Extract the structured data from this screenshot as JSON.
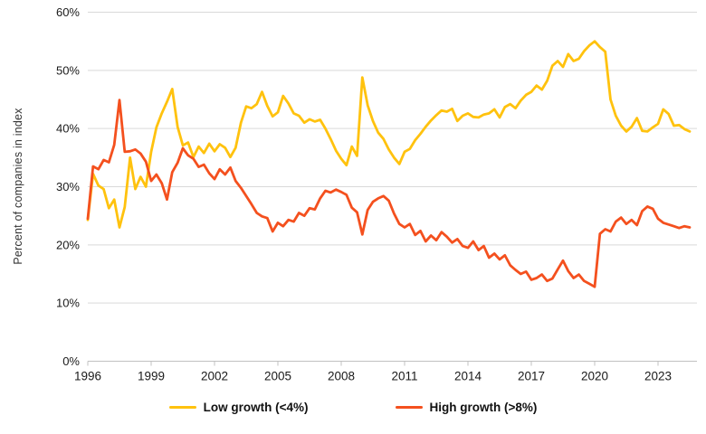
{
  "chart_data": {
    "type": "line",
    "title": "",
    "xlabel": "",
    "ylabel": "Percent of companies in index",
    "ylim": [
      0,
      60
    ],
    "ytick_step": 10,
    "ytick_suffix": "%",
    "xticks": [
      1996,
      1999,
      2002,
      2005,
      2008,
      2011,
      2014,
      2017,
      2020,
      2023
    ],
    "x_start": 1996.0,
    "x_step": 0.25,
    "x_end": 2024.5,
    "grid": "horizontal",
    "legend_position": "bottom",
    "series": [
      {
        "name": "Low growth (<4%)",
        "color": "#FFC20E",
        "values": [
          24.3,
          32.2,
          30.2,
          29.6,
          26.3,
          27.8,
          23.0,
          26.5,
          35.0,
          29.6,
          31.7,
          30.0,
          36.0,
          40.2,
          42.6,
          44.6,
          46.8,
          40.3,
          37.1,
          37.6,
          35.1,
          36.9,
          35.8,
          37.4,
          36.1,
          37.3,
          36.7,
          35.1,
          36.7,
          41.0,
          43.8,
          43.5,
          44.2,
          46.3,
          43.9,
          42.1,
          42.8,
          45.6,
          44.3,
          42.6,
          42.2,
          41.0,
          41.6,
          41.2,
          41.5,
          40.0,
          38.2,
          36.2,
          34.8,
          33.7,
          36.9,
          35.3,
          48.8,
          44.0,
          41.3,
          39.3,
          38.2,
          36.4,
          35.0,
          33.9,
          36.0,
          36.5,
          38.0,
          39.1,
          40.3,
          41.4,
          42.3,
          43.1,
          42.9,
          43.4,
          41.3,
          42.2,
          42.6,
          42.0,
          41.9,
          42.4,
          42.6,
          43.3,
          41.9,
          43.7,
          44.2,
          43.5,
          44.8,
          45.8,
          46.3,
          47.4,
          46.7,
          48.2,
          50.8,
          51.6,
          50.6,
          52.8,
          51.6,
          52.0,
          53.3,
          54.3,
          55.0,
          54.0,
          53.2,
          45.0,
          42.2,
          40.5,
          39.5,
          40.3,
          41.8,
          39.6,
          39.5,
          40.2,
          40.8,
          43.3,
          42.5,
          40.5,
          40.6,
          39.9,
          39.5
        ]
      },
      {
        "name": "High growth (>8%)",
        "color": "#F4501E",
        "values": [
          24.5,
          33.5,
          33.0,
          34.6,
          34.2,
          37.2,
          44.9,
          36.0,
          36.1,
          36.4,
          35.7,
          34.3,
          31.0,
          32.1,
          30.6,
          27.8,
          32.5,
          34.1,
          36.6,
          35.4,
          34.8,
          33.4,
          33.8,
          32.3,
          31.3,
          33.0,
          32.1,
          33.3,
          31.0,
          29.8,
          28.4,
          27.0,
          25.5,
          24.9,
          24.6,
          22.3,
          23.8,
          23.2,
          24.3,
          24.0,
          25.5,
          25.0,
          26.3,
          26.1,
          28.0,
          29.3,
          29.0,
          29.5,
          29.1,
          28.6,
          26.4,
          25.6,
          21.8,
          26.0,
          27.4,
          28.0,
          28.4,
          27.6,
          25.4,
          23.6,
          23.0,
          23.6,
          21.7,
          22.4,
          20.6,
          21.6,
          20.8,
          22.2,
          21.4,
          20.4,
          21.0,
          19.8,
          19.5,
          20.6,
          19.1,
          19.8,
          17.8,
          18.5,
          17.5,
          18.2,
          16.5,
          15.7,
          15.0,
          15.4,
          14.0,
          14.3,
          14.9,
          13.8,
          14.2,
          15.8,
          17.3,
          15.5,
          14.3,
          14.9,
          13.8,
          13.3,
          12.8,
          21.9,
          22.7,
          22.3,
          24.0,
          24.7,
          23.6,
          24.3,
          23.4,
          25.8,
          26.6,
          26.2,
          24.5,
          23.8,
          23.5,
          23.2,
          22.9,
          23.2,
          23.0
        ]
      }
    ]
  },
  "colors": {
    "background": "#ffffff",
    "gridline": "#d9d9d9",
    "axis_line": "#c0c0c0",
    "tick_label": "#1a1a1a",
    "axis_title": "#333333",
    "legend_text": "#111111"
  }
}
